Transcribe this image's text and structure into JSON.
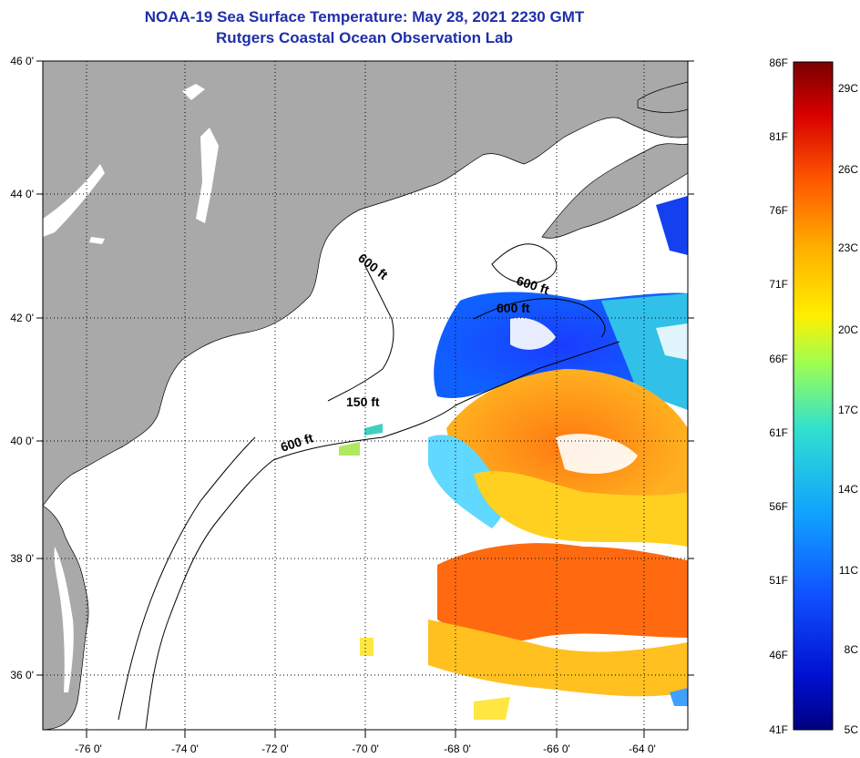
{
  "title": "NOAA-19 Sea Surface Temperature:  May 28, 2021 2230 GMT",
  "subtitle": "Rutgers Coastal Ocean Observation Lab",
  "map": {
    "lat_labels": [
      "46 0'",
      "44 0'",
      "42 0'",
      "40 0'",
      "38 0'",
      "36 0'"
    ],
    "lon_labels": [
      "-76 0'",
      "-74 0'",
      "-72 0'",
      "-70 0'",
      "-68 0'",
      "-66 0'",
      "-64 0'"
    ],
    "contour_labels": [
      "600 ft",
      "600 ft",
      "600 ft",
      "150 ft",
      "600 ft"
    ],
    "land_color": "#a9a9a9",
    "water_no_data_color": "#ffffff"
  },
  "colorbar": {
    "f_labels": [
      "86F",
      "81F",
      "76F",
      "71F",
      "66F",
      "61F",
      "56F",
      "51F",
      "46F",
      "41F"
    ],
    "c_labels": [
      "29C",
      "26C",
      "23C",
      "20C",
      "17C",
      "14C",
      "11C",
      "8C",
      "5C"
    ],
    "colors": [
      "#800000",
      "#d40000",
      "#ff4000",
      "#ff9a00",
      "#ffe600",
      "#b0ff40",
      "#30e0d0",
      "#10a0ff",
      "#1040ff",
      "#0000b0",
      "#000080"
    ]
  }
}
